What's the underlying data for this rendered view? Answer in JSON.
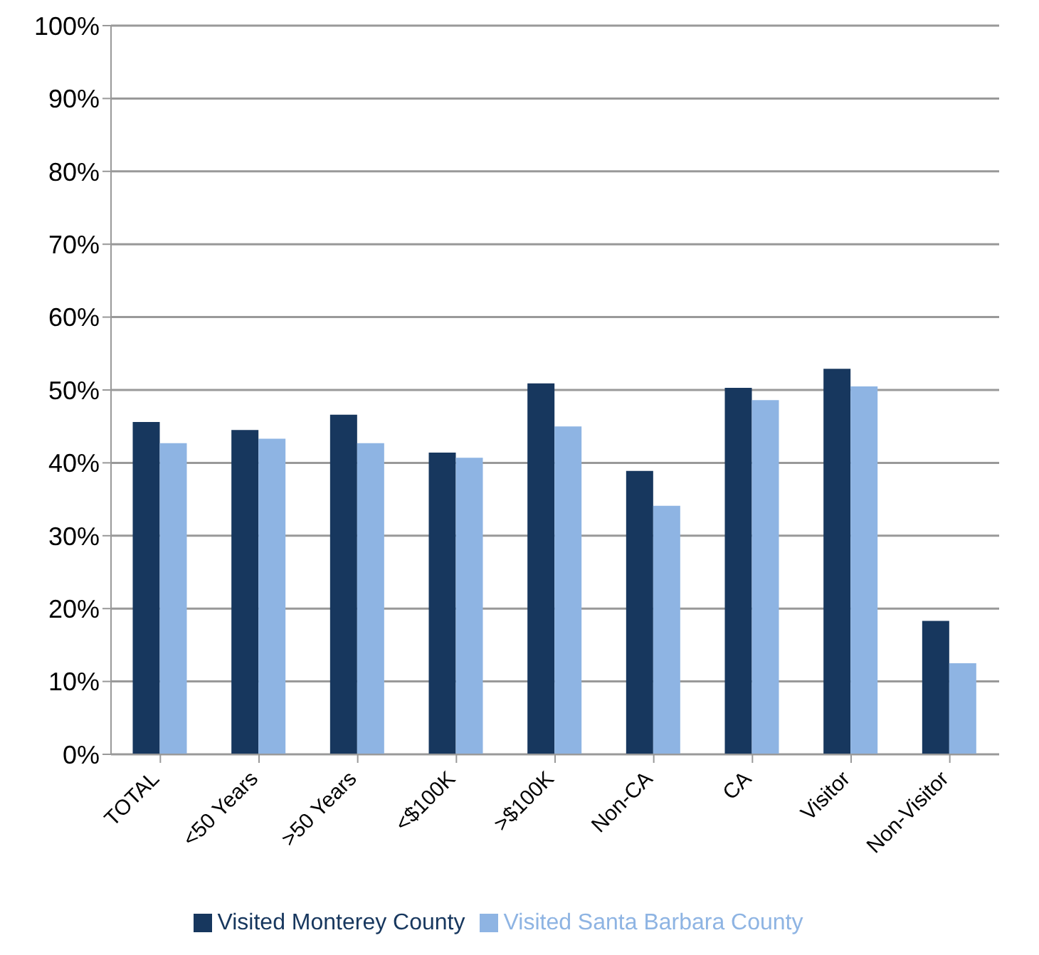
{
  "chart_data": {
    "type": "bar",
    "categories": [
      "TOTAL",
      "<50 Years",
      ">50 Years",
      "<$100K",
      ">$100K",
      "Non-CA",
      "CA",
      "Visitor",
      "Non-Visitor"
    ],
    "series": [
      {
        "name": "Visited Monterey County",
        "color": "#17375e",
        "values": [
          45.6,
          44.5,
          46.6,
          41.4,
          50.9,
          38.9,
          50.3,
          52.9,
          18.3
        ]
      },
      {
        "name": "Visited Santa Barbara County",
        "color": "#8eb4e3",
        "values": [
          42.7,
          43.3,
          42.7,
          40.7,
          45.0,
          34.1,
          48.6,
          50.5,
          12.5
        ]
      }
    ],
    "ylim": [
      0,
      100
    ],
    "yticks": [
      {
        "value": 0,
        "label": "0%"
      },
      {
        "value": 10,
        "label": "10%"
      },
      {
        "value": 20,
        "label": "20%"
      },
      {
        "value": 30,
        "label": "30%"
      },
      {
        "value": 40,
        "label": "40%"
      },
      {
        "value": 50,
        "label": "50%"
      },
      {
        "value": 60,
        "label": "60%"
      },
      {
        "value": 70,
        "label": "70%"
      },
      {
        "value": 80,
        "label": "80%"
      },
      {
        "value": 90,
        "label": "90%"
      },
      {
        "value": 100,
        "label": "100%"
      }
    ],
    "grid": "y",
    "legend": "bottom"
  }
}
